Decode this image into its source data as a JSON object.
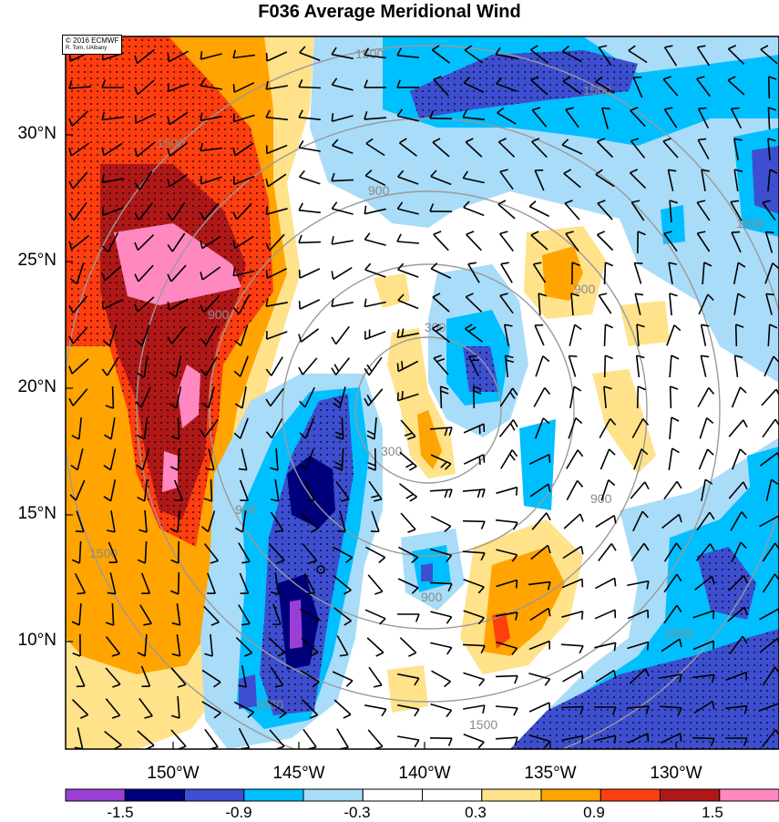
{
  "title": "F036 Average Meridional Wind",
  "credit": {
    "line1": "© 2016 ECMWF",
    "line2": "R. Torn, UAlbany"
  },
  "axes": {
    "lat_labels": [
      "30°N",
      "25°N",
      "20°N",
      "15°N",
      "10°N"
    ],
    "lon_labels": [
      "150°W",
      "145°W",
      "140°W",
      "135°W",
      "130°W"
    ]
  },
  "contour_labels": [
    "300",
    "900",
    "1500"
  ],
  "colorbar": {
    "labels": [
      "-1.5",
      "-0.9",
      "-0.3",
      "0.3",
      "0.9",
      "1.5"
    ],
    "colors": [
      "#9a3fd6",
      "#00007a",
      "#3d4fd0",
      "#00bfff",
      "#a9dcf8",
      "#ffffff",
      "#ffffff",
      "#ffe28a",
      "#ffa400",
      "#ff3e10",
      "#b01818",
      "#ff88c0"
    ]
  }
}
